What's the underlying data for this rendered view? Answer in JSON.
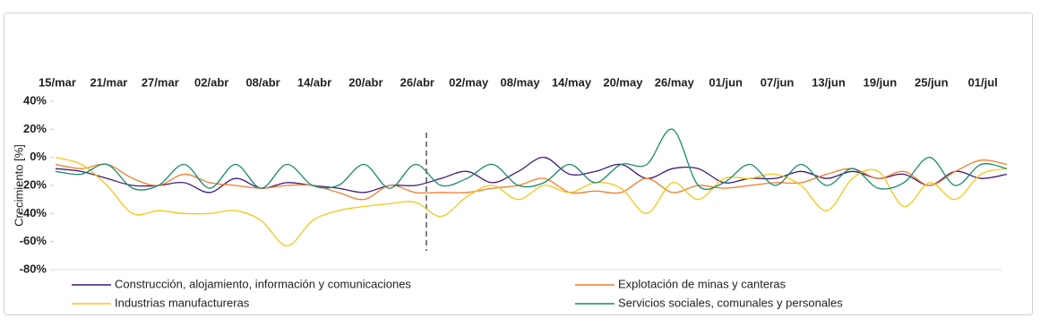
{
  "chart_data": {
    "type": "line",
    "y_label": "Crecimiento [%]",
    "categories": [
      "15/mar",
      null,
      "21/mar",
      null,
      "27/mar",
      null,
      "02/abr",
      null,
      "08/abr",
      null,
      "14/abr",
      null,
      "20/abr",
      null,
      "26/abr",
      null,
      "02/may",
      null,
      "08/may",
      null,
      "14/may",
      null,
      "20/may",
      null,
      "26/may",
      null,
      "01/jun",
      null,
      "07/jun",
      null,
      "13/jun",
      null,
      "19/jun",
      null,
      "25/jun",
      null,
      "01/jul",
      null
    ],
    "ylim": [
      -80,
      40
    ],
    "yticks": [
      {
        "value": 40,
        "label": "40%"
      },
      {
        "value": 20,
        "label": "20%"
      },
      {
        "value": 0,
        "label": "0%"
      },
      {
        "value": -20,
        "label": "-20%"
      },
      {
        "value": -40,
        "label": "-40%"
      },
      {
        "value": -60,
        "label": "-60%"
      },
      {
        "value": -80,
        "label": "-80%"
      }
    ],
    "series": [
      {
        "name": "Construcción, alojamiento, información y comunicaciones",
        "color": "#3f1a7a",
        "values": [
          -8,
          -10,
          -15,
          -20,
          -20,
          -18,
          -25,
          -15,
          -22,
          -18,
          -20,
          -22,
          -25,
          -20,
          -20,
          -15,
          -10,
          -18,
          -10,
          0,
          -12,
          -10,
          -5,
          -15,
          -8,
          -8,
          -18,
          -15,
          -15,
          -10,
          -15,
          -10,
          -15,
          -12,
          -20,
          -10,
          -15,
          -12
        ]
      },
      {
        "name": "Explotación de minas y canteras",
        "color": "#f07c2a",
        "values": [
          -5,
          -8,
          -5,
          -15,
          -20,
          -12,
          -18,
          -20,
          -22,
          -20,
          -20,
          -25,
          -30,
          -20,
          -25,
          -25,
          -25,
          -22,
          -20,
          -15,
          -25,
          -24,
          -25,
          -15,
          -25,
          -20,
          -22,
          -20,
          -18,
          -18,
          -12,
          -8,
          -15,
          -10,
          -20,
          -10,
          -2,
          -5
        ]
      },
      {
        "name": "Industrias manufactureras",
        "color": "#f5c518",
        "values": [
          0,
          -5,
          -20,
          -40,
          -38,
          -40,
          -40,
          -38,
          -45,
          -63,
          -45,
          -38,
          -35,
          -33,
          -32,
          -42,
          -28,
          -20,
          -30,
          -20,
          -25,
          -18,
          -22,
          -40,
          -18,
          -30,
          -15,
          -15,
          -12,
          -20,
          -38,
          -15,
          -10,
          -35,
          -18,
          -30,
          -12,
          -8
        ]
      },
      {
        "name": "Servicios sociales, comunales y personales",
        "color": "#1a8a6a",
        "values": [
          -10,
          -12,
          -5,
          -22,
          -20,
          -5,
          -22,
          -5,
          -22,
          -5,
          -20,
          -20,
          -5,
          -22,
          -5,
          -20,
          -15,
          -5,
          -20,
          -18,
          -5,
          -18,
          -5,
          -5,
          20,
          -20,
          -18,
          -5,
          -20,
          -5,
          -20,
          -8,
          -22,
          -18,
          0,
          -20,
          -5,
          -8
        ]
      }
    ]
  }
}
